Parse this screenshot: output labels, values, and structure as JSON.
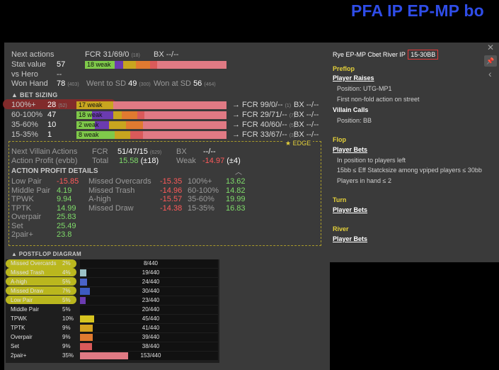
{
  "banner": "PFA IP EP-MP bo",
  "stats": {
    "next_actions": {
      "label": "Next actions",
      "fcr": "FCR 31/69/0",
      "fcr_n": "(18)",
      "bx": "BX --/--"
    },
    "stat_value": {
      "label": "Stat value",
      "value": "57",
      "bar_text": "18 weak"
    },
    "vs_hero": {
      "label": "vs Hero",
      "value": "--"
    },
    "won_hand": {
      "label": "Won Hand",
      "value": "78",
      "n": "(403)",
      "went_sd_label": "Went to SD",
      "went_sd": "49",
      "went_sd_n": "(300)",
      "won_sd_label": "Won at SD",
      "won_sd": "56",
      "won_sd_n": "(464)"
    }
  },
  "bet_sizing": {
    "title": "BET SIZING",
    "rows": [
      {
        "label": "100%+",
        "value": "28",
        "n": "(52)",
        "bar_text": "17 weak",
        "fcr": "→ FCR 99/0/--",
        "fcr_n": "(1)",
        "bx": "BX --/--"
      },
      {
        "label": "60-100%",
        "value": "47",
        "n": "",
        "bar_text": "18 weak",
        "fcr": "→ FCR 29/71/--",
        "fcr_n": "(7)",
        "bx": "BX --/--"
      },
      {
        "label": "35-60%",
        "value": "10",
        "n": "",
        "bar_text": "2 weak",
        "fcr": "→ FCR 40/60/--",
        "fcr_n": "(5)",
        "bx": "BX --/--"
      },
      {
        "label": "15-35%",
        "value": "1",
        "n": "",
        "bar_text": "8 weak",
        "fcr": "→ FCR 33/67/--",
        "fcr_n": "(3)",
        "bx": "BX --/--"
      }
    ],
    "edge_label": "★ EDGE"
  },
  "villain": {
    "nva_label": "Next Villain Actions",
    "fcr_label": "FCR",
    "fcr": "51/47/15",
    "fcr_n": "(629)",
    "bx_label": "BX",
    "bx": "--/--",
    "ap_label": "Action Profit (evbb)",
    "total_label": "Total",
    "total": "15.58",
    "total_adj": "(±18)",
    "weak_label": "Weak",
    "weak": "-14.97",
    "weak_adj": "(±4)"
  },
  "apd": {
    "title": "ACTION PROFIT DETAILS",
    "col1": [
      {
        "name": "Low Pair",
        "value": "-15.85"
      },
      {
        "name": "Middle Pair",
        "value": "4.19"
      },
      {
        "name": "TPWK",
        "value": "9.94"
      },
      {
        "name": "TPTK",
        "value": "14.99"
      },
      {
        "name": "Overpair",
        "value": "25.83"
      },
      {
        "name": "Set",
        "value": "25.49"
      },
      {
        "name": "2pair+",
        "value": "23.8"
      }
    ],
    "col2": [
      {
        "name": "Missed Overcards",
        "value": "-15.35"
      },
      {
        "name": "Missed Trash",
        "value": "-14.96"
      },
      {
        "name": "A-high",
        "value": "-15.57"
      },
      {
        "name": "Missed Draw",
        "value": "-14.38"
      }
    ],
    "col3": [
      {
        "name": "100%+",
        "value": "13.62"
      },
      {
        "name": "60-100%",
        "value": "14.82"
      },
      {
        "name": "35-60%",
        "value": "19.99"
      },
      {
        "name": "15-35%",
        "value": "16.83"
      }
    ]
  },
  "diagram": {
    "title": "POSTFLOP DIAGRAM",
    "rows": [
      {
        "name": "Missed Overcards",
        "pct": "2%",
        "count": "8/440",
        "fill": 0.0,
        "color": "#6b3bb0"
      },
      {
        "name": "Missed Trash",
        "pct": "4%",
        "count": "19/440",
        "fill": 0.045,
        "color": "#9cc2c8"
      },
      {
        "name": "A-high",
        "pct": "5%",
        "count": "24/440",
        "fill": 0.05,
        "color": "#4a63c8"
      },
      {
        "name": "Missed Draw",
        "pct": "7%",
        "count": "30/440",
        "fill": 0.07,
        "color": "#3d5bc0"
      },
      {
        "name": "Low Pair",
        "pct": "5%",
        "count": "23/440",
        "fill": 0.04,
        "color": "#6b3bb0"
      },
      {
        "name": "Middle Pair",
        "pct": "5%",
        "count": "20/440",
        "fill": 0.0,
        "color": "#6b3bb0"
      },
      {
        "name": "TPWK",
        "pct": "10%",
        "count": "45/440",
        "fill": 0.1,
        "color": "#d6c420"
      },
      {
        "name": "TPTK",
        "pct": "9%",
        "count": "41/440",
        "fill": 0.09,
        "color": "#d6a320"
      },
      {
        "name": "Overpair",
        "pct": "9%",
        "count": "39/440",
        "fill": 0.09,
        "color": "#e07a30"
      },
      {
        "name": "Set",
        "pct": "9%",
        "count": "38/440",
        "fill": 0.085,
        "color": "#d95a5a"
      },
      {
        "name": "2pair+",
        "pct": "35%",
        "count": "153/440",
        "fill": 0.35,
        "color": "#e07a84"
      }
    ]
  },
  "right": {
    "title": "Rye EP-MP Cbet River IP",
    "title_range": "15-30BB",
    "preflop": "Preflop",
    "player_raises": "Player Raises",
    "position_player": "Position: UTG-MP1",
    "first_action": "First non-fold action on street",
    "villain_calls": "Villain Calls",
    "position_villain": "Position: BB",
    "flop": "Flop",
    "player_bets_flop": "Player Bets",
    "in_position": "In position to players left",
    "stacksize": "15bb ≤ Eff Statcksize among vpiped players ≤ 30bb",
    "players_in_hand": "Players in hand ≤ 2",
    "turn": "Turn",
    "player_bets_turn": "Player Bets",
    "river": "River",
    "player_bets_river": "Player Bets"
  },
  "controls": {
    "close": "✕",
    "pin": "📌",
    "back": "‹"
  }
}
